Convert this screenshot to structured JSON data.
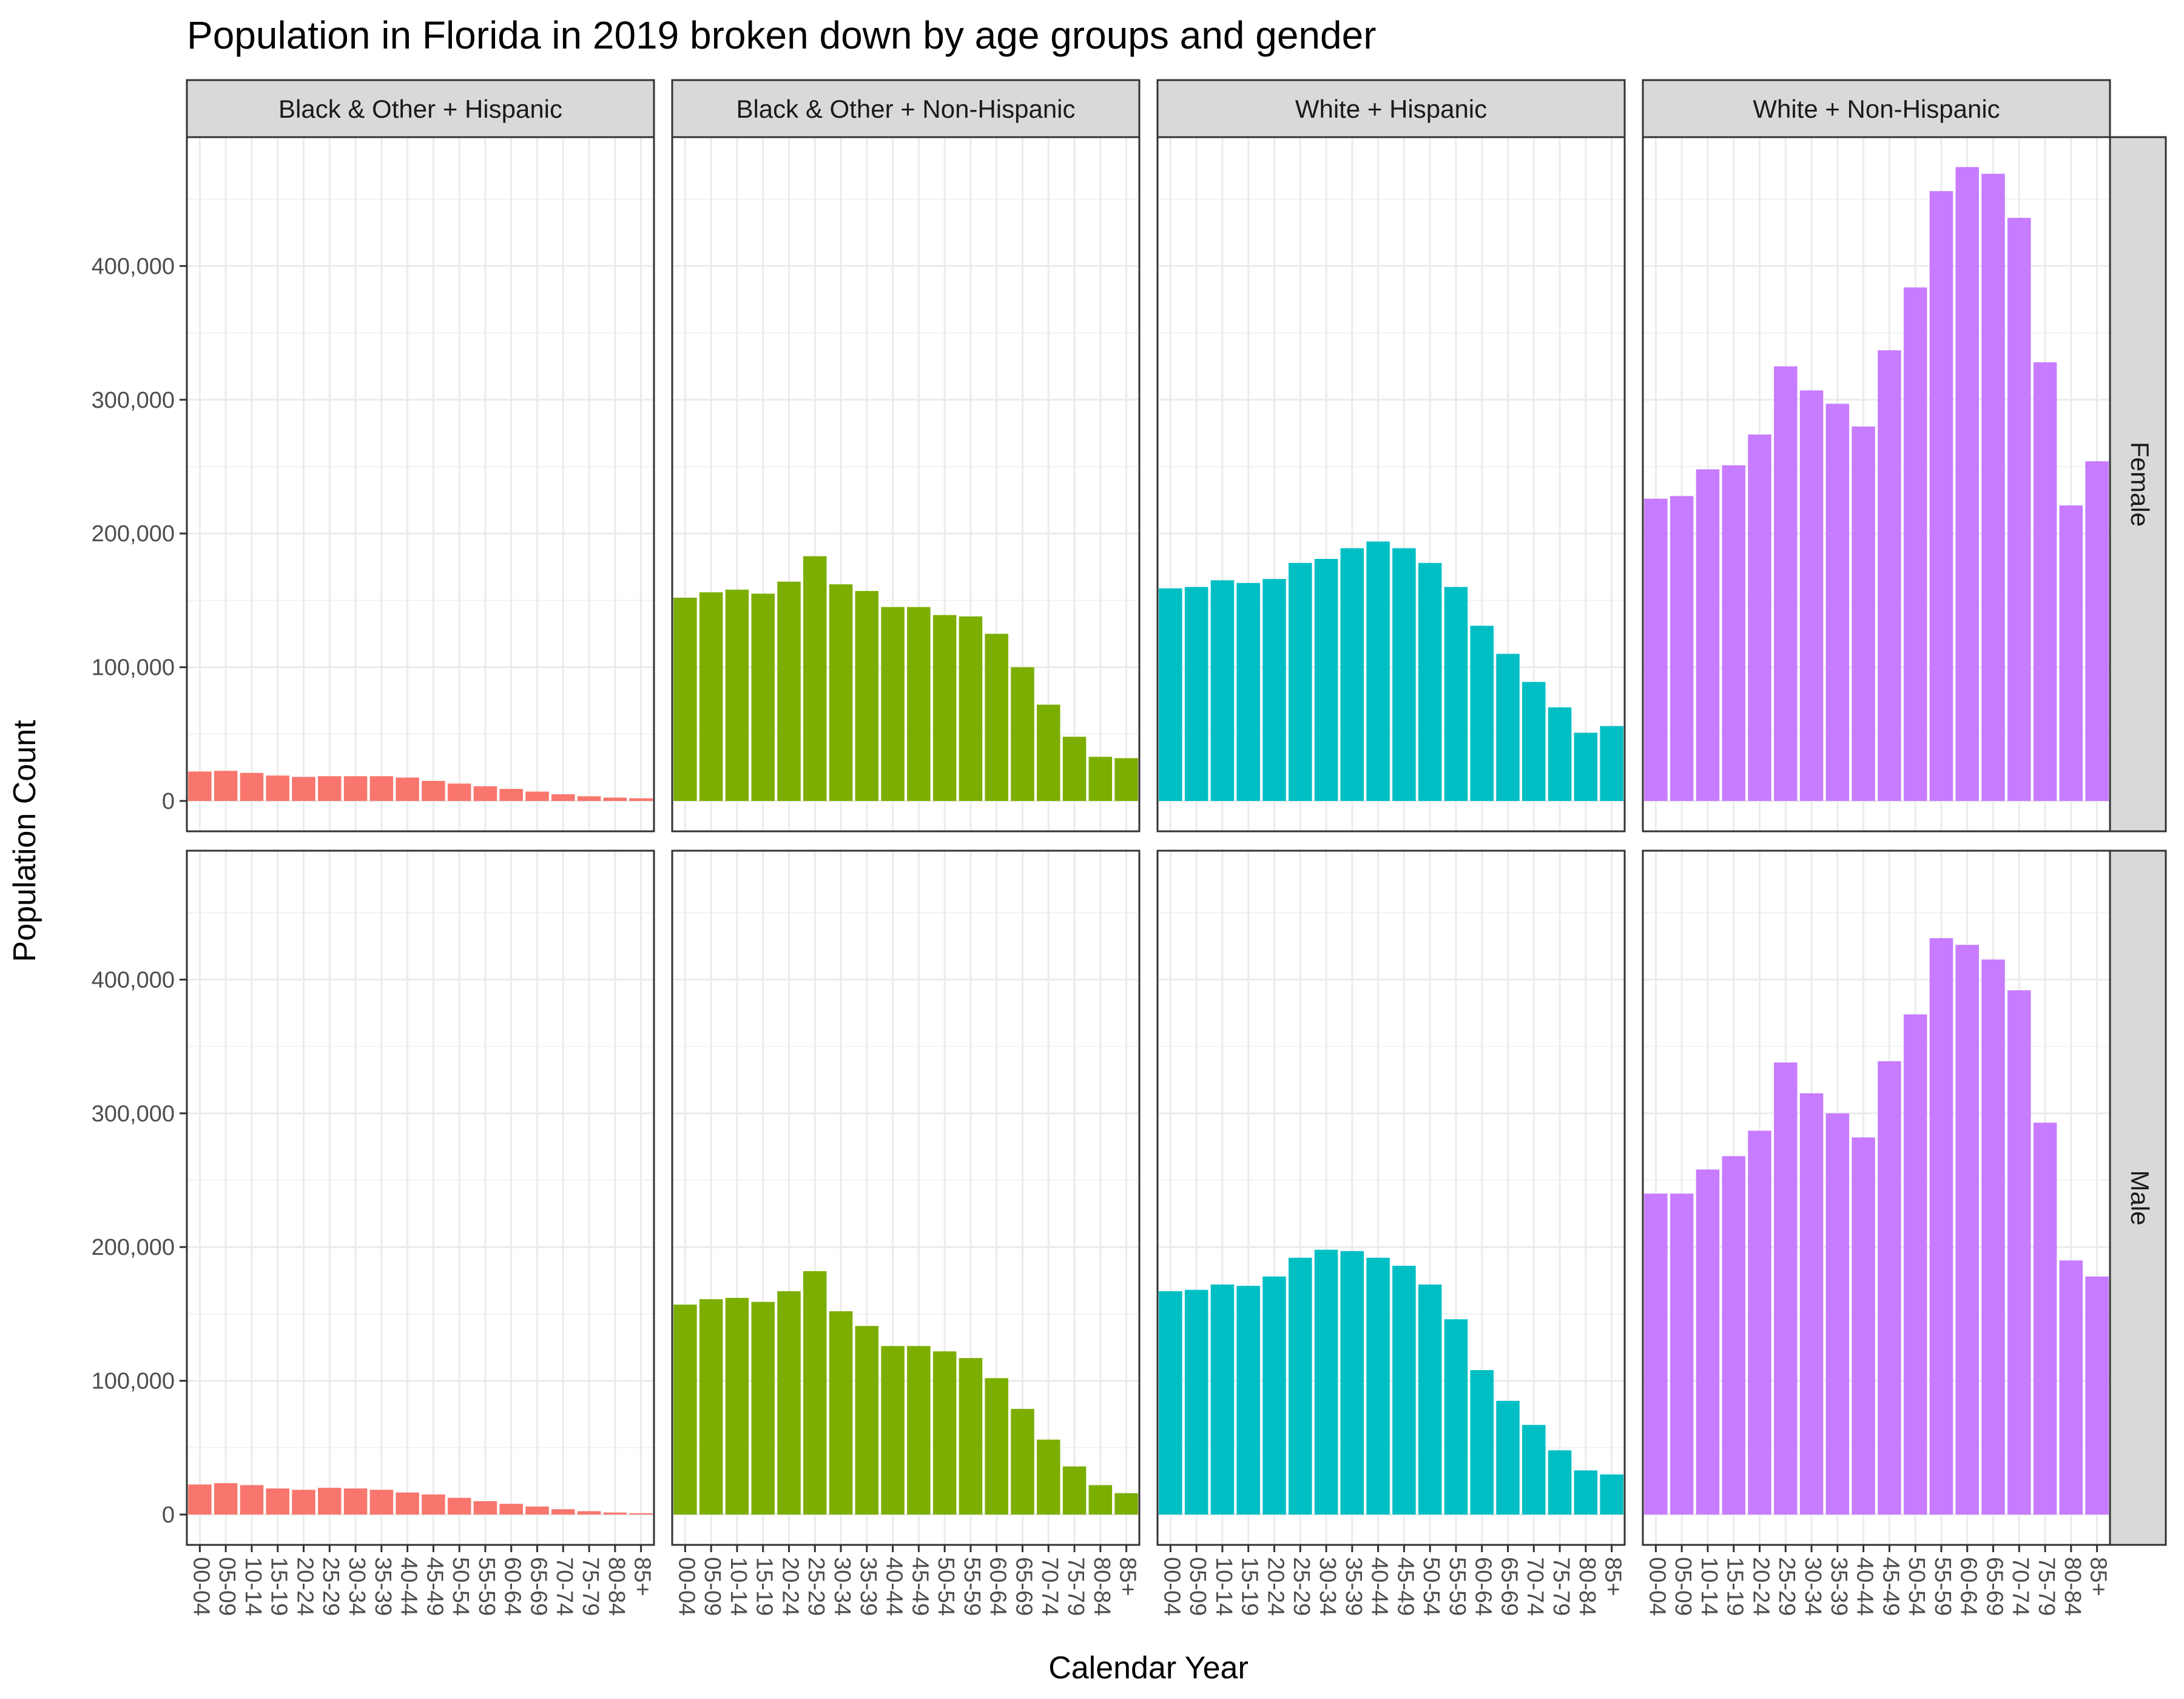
{
  "chart_data": {
    "type": "bar",
    "title": "Population in Florida in 2019 broken down by age groups and gender",
    "xlabel": "Calendar Year",
    "ylabel": "Population Count",
    "ylim": [
      0,
      500000
    ],
    "y_ticks": [
      0,
      100000,
      200000,
      300000,
      400000
    ],
    "y_tick_labels": [
      "0",
      "100,000",
      "200,000",
      "300,000",
      "400,000"
    ],
    "grid": true,
    "facet_columns": [
      "Black & Other + Hispanic",
      "Black & Other + Non-Hispanic",
      "White + Hispanic",
      "White + Non-Hispanic"
    ],
    "facet_rows": [
      "Female",
      "Male"
    ],
    "categories": [
      "00-04",
      "05-09",
      "10-14",
      "15-19",
      "20-24",
      "25-29",
      "30-34",
      "35-39",
      "40-44",
      "45-49",
      "50-54",
      "55-59",
      "60-64",
      "65-69",
      "70-74",
      "75-79",
      "80-84",
      "85+"
    ],
    "colors": [
      "#F8766D",
      "#7CAE00",
      "#00BFC4",
      "#C77CFF"
    ],
    "panels": [
      {
        "row": "Female",
        "column": "Black & Other + Hispanic",
        "values": [
          22000,
          22500,
          21000,
          19000,
          18000,
          18500,
          18500,
          18500,
          17500,
          15000,
          13000,
          11000,
          9000,
          7000,
          5000,
          3500,
          2500,
          2000
        ]
      },
      {
        "row": "Female",
        "column": "Black & Other + Non-Hispanic",
        "values": [
          152000,
          156000,
          158000,
          155000,
          164000,
          183000,
          162000,
          157000,
          145000,
          145000,
          139000,
          138000,
          125000,
          100000,
          72000,
          48000,
          33000,
          32000
        ]
      },
      {
        "row": "Female",
        "column": "White + Hispanic",
        "values": [
          159000,
          160000,
          165000,
          163000,
          166000,
          178000,
          181000,
          189000,
          194000,
          189000,
          178000,
          160000,
          131000,
          110000,
          89000,
          70000,
          51000,
          56000
        ]
      },
      {
        "row": "Female",
        "column": "White + Non-Hispanic",
        "values": [
          226000,
          228000,
          248000,
          251000,
          274000,
          325000,
          307000,
          297000,
          280000,
          337000,
          384000,
          456000,
          474000,
          469000,
          436000,
          328000,
          221000,
          254000
        ]
      },
      {
        "row": "Male",
        "column": "Black & Other + Hispanic",
        "values": [
          22500,
          23500,
          22000,
          19500,
          18500,
          20000,
          19500,
          18500,
          16500,
          15000,
          12500,
          10000,
          8000,
          6000,
          4000,
          2500,
          1500,
          1000
        ]
      },
      {
        "row": "Male",
        "column": "Black & Other + Non-Hispanic",
        "values": [
          157000,
          161000,
          162000,
          159000,
          167000,
          182000,
          152000,
          141000,
          126000,
          126000,
          122000,
          117000,
          102000,
          79000,
          56000,
          36000,
          22000,
          16000
        ]
      },
      {
        "row": "Male",
        "column": "White + Hispanic",
        "values": [
          167000,
          168000,
          172000,
          171000,
          178000,
          192000,
          198000,
          197000,
          192000,
          186000,
          172000,
          146000,
          108000,
          85000,
          67000,
          48000,
          33000,
          30000
        ]
      },
      {
        "row": "Male",
        "column": "White + Non-Hispanic",
        "values": [
          240000,
          240000,
          258000,
          268000,
          287000,
          338000,
          315000,
          300000,
          282000,
          339000,
          374000,
          431000,
          426000,
          415000,
          392000,
          293000,
          190000,
          178000
        ]
      }
    ]
  }
}
